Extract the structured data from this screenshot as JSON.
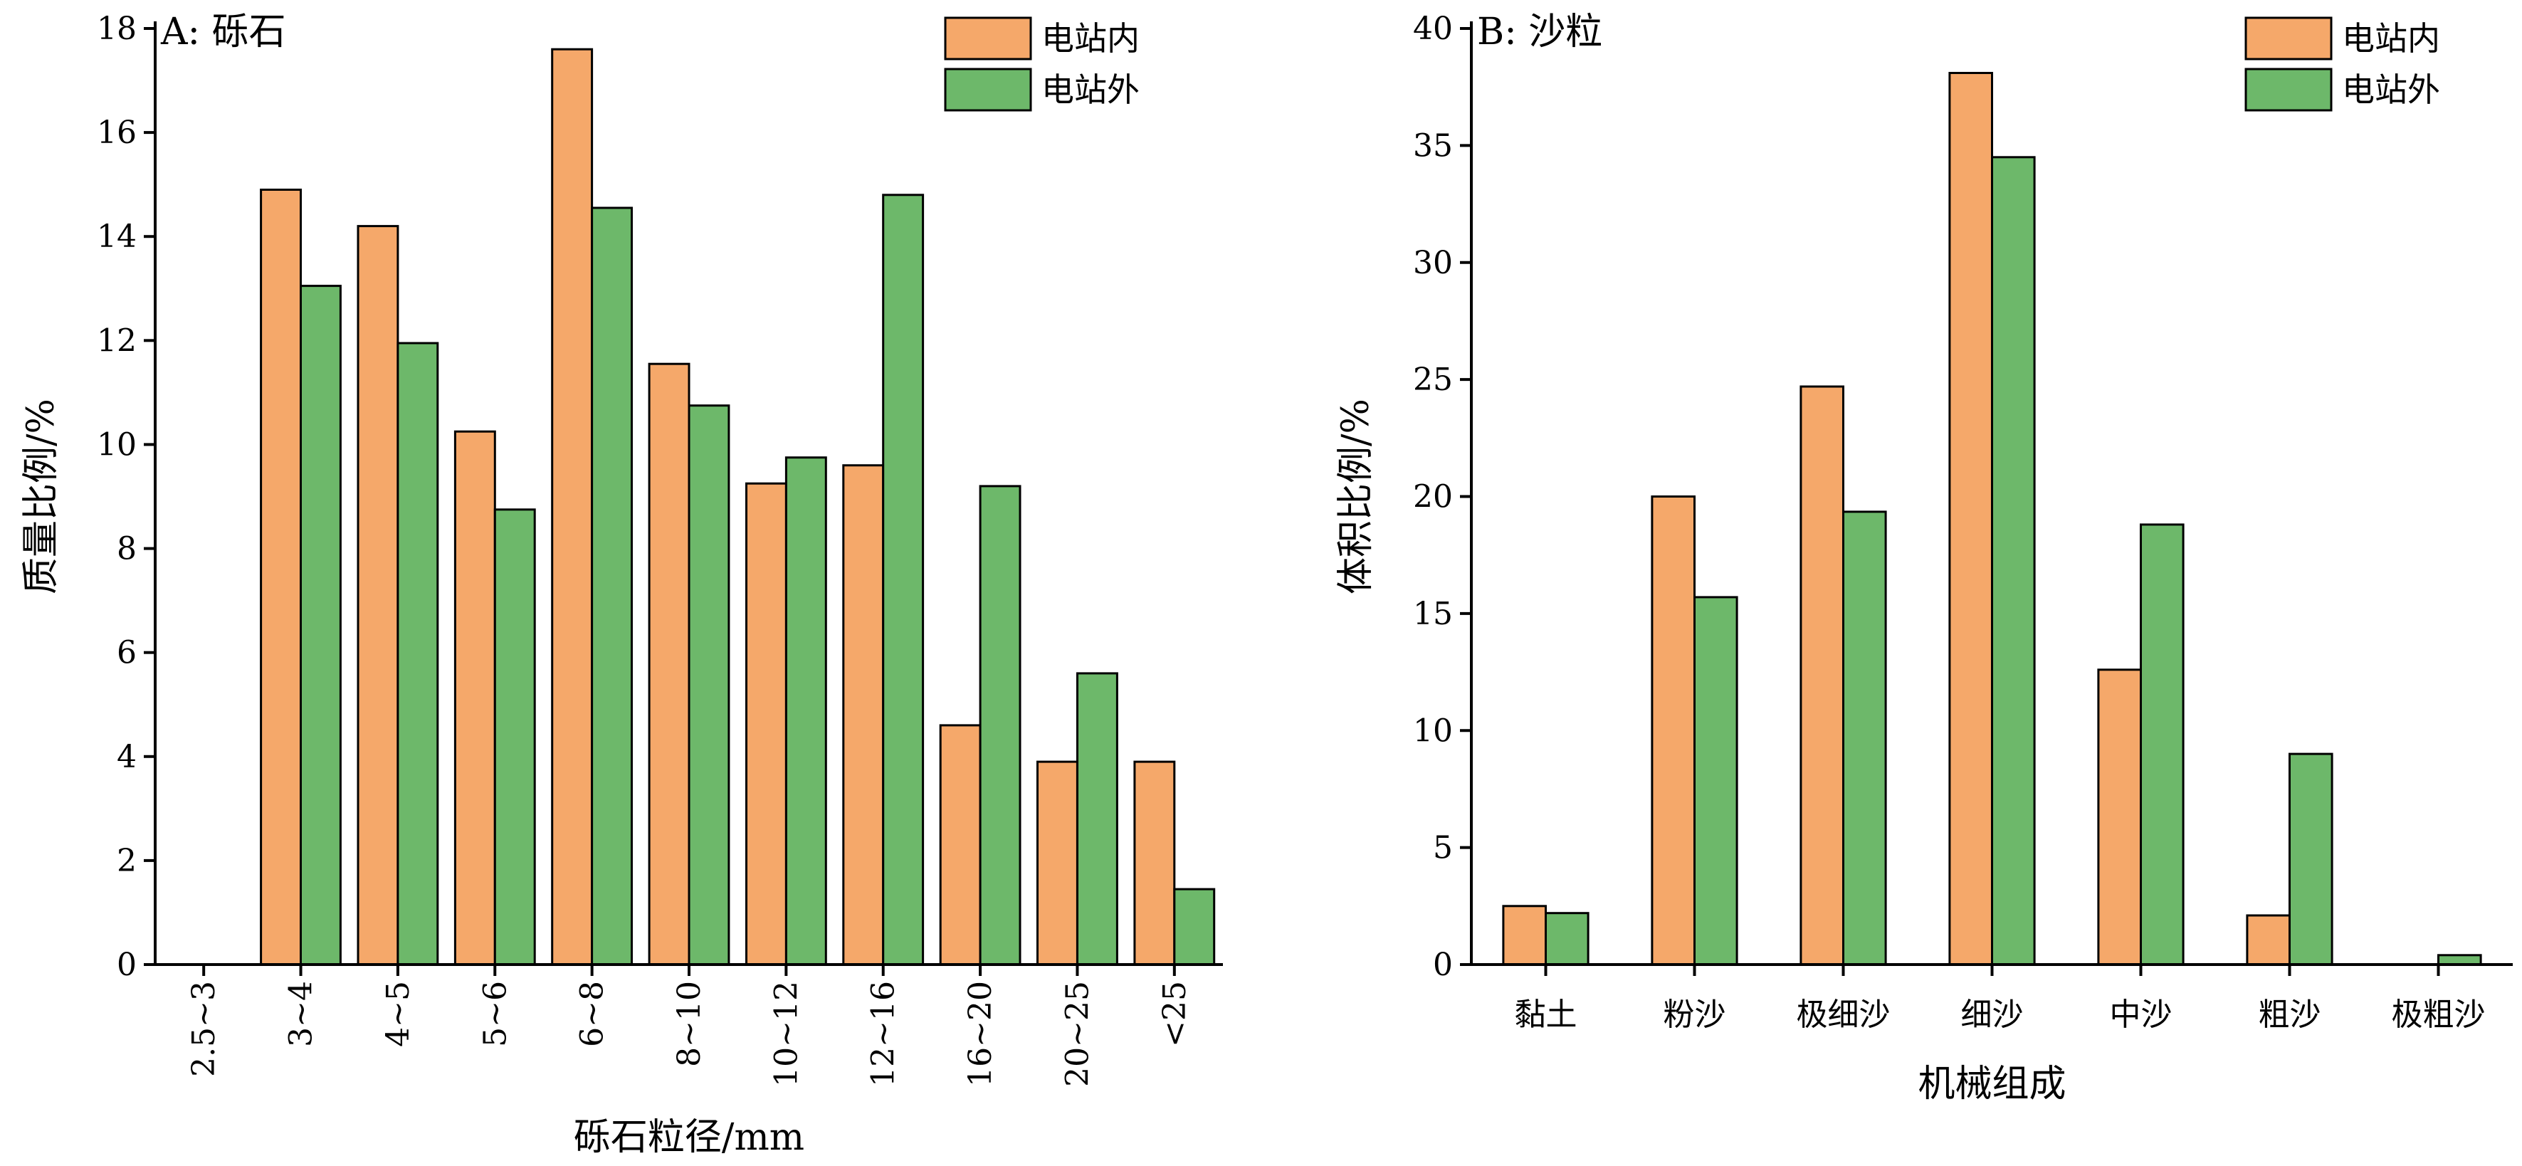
{
  "chart_data": [
    {
      "type": "bar",
      "title": "A: 砾石",
      "xlabel": "砾石粒径/mm",
      "ylabel": "质量比例/%",
      "ylim": [
        0,
        18
      ],
      "yticks": [
        0,
        2,
        4,
        6,
        8,
        10,
        12,
        14,
        16,
        18
      ],
      "categories": [
        "2.5~3",
        "3~4",
        "4~5",
        "5~6",
        "6~8",
        "8~10",
        "10~12",
        "12~16",
        "16~20",
        "20~25",
        "<25"
      ],
      "x_tick_rotation": "vertical",
      "series": [
        {
          "name": "电站内",
          "color": "#f5a86a",
          "values": [
            0,
            14.9,
            14.2,
            10.25,
            17.6,
            11.55,
            9.25,
            9.6,
            4.6,
            3.9,
            3.9
          ]
        },
        {
          "name": "电站外",
          "color": "#6db86a",
          "values": [
            0,
            13.05,
            11.95,
            8.75,
            14.55,
            10.75,
            9.75,
            14.8,
            9.2,
            5.6,
            1.45
          ]
        }
      ],
      "legend_position": "top-right",
      "grid": false
    },
    {
      "type": "bar",
      "title": "B: 沙粒",
      "xlabel": "机械组成",
      "ylabel": "体积比例/%",
      "ylim": [
        0,
        40
      ],
      "yticks": [
        0,
        5,
        10,
        15,
        20,
        25,
        30,
        35,
        40
      ],
      "categories": [
        "黏土",
        "粉沙",
        "极细沙",
        "细沙",
        "中沙",
        "粗沙",
        "极粗沙"
      ],
      "x_tick_rotation": "horizontal",
      "series": [
        {
          "name": "电站内",
          "color": "#f5a86a",
          "values": [
            2.5,
            20,
            24.7,
            38.1,
            12.6,
            2.1,
            0
          ]
        },
        {
          "name": "电站外",
          "color": "#6db86a",
          "values": [
            2.2,
            15.7,
            19.35,
            34.5,
            18.8,
            9,
            0.4
          ]
        }
      ],
      "legend_position": "top-right",
      "grid": false
    }
  ]
}
